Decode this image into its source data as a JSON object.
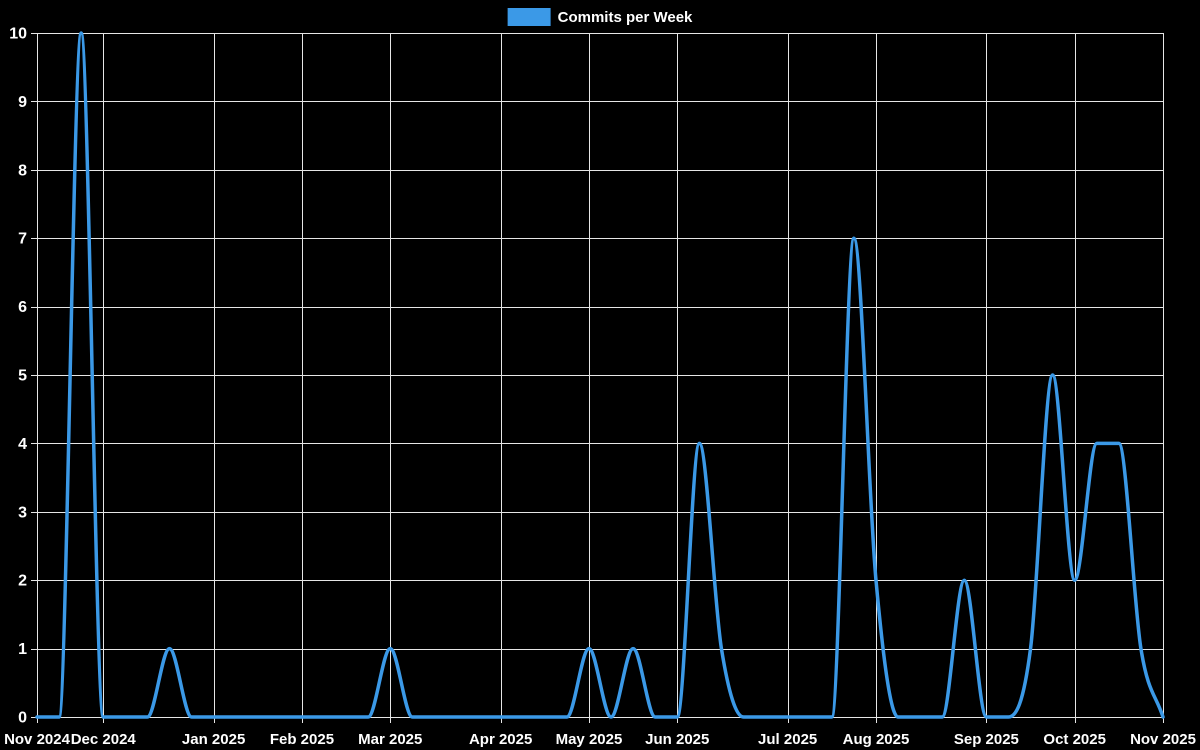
{
  "chart_data": {
    "type": "line",
    "title": "",
    "legend_position": "top-center",
    "interpolation": "monotone",
    "grid": true,
    "point_markers": false,
    "ylim": [
      0,
      10
    ],
    "y_tick_interval": 1,
    "y_tick_labels": [
      "0",
      "1",
      "2",
      "3",
      "4",
      "5",
      "6",
      "7",
      "8",
      "9",
      "10"
    ],
    "x_ticks": [
      {
        "label": "Nov 2024",
        "week": 0
      },
      {
        "label": "Dec 2024",
        "week": 3
      },
      {
        "label": "Jan 2025",
        "week": 8
      },
      {
        "label": "Feb 2025",
        "week": 12
      },
      {
        "label": "Mar 2025",
        "week": 16
      },
      {
        "label": "Apr 2025",
        "week": 21
      },
      {
        "label": "May 2025",
        "week": 25
      },
      {
        "label": "Jun 2025",
        "week": 29
      },
      {
        "label": "Jul 2025",
        "week": 34
      },
      {
        "label": "Aug 2025",
        "week": 38
      },
      {
        "label": "Sep 2025",
        "week": 43
      },
      {
        "label": "Oct 2025",
        "week": 47
      },
      {
        "label": "Nov 2025",
        "week": 51
      }
    ],
    "series": [
      {
        "name": "Commits per Week",
        "color": "#3B99E7",
        "values": [
          0,
          0,
          10,
          0,
          0,
          0,
          1,
          0,
          0,
          0,
          0,
          0,
          0,
          0,
          0,
          0,
          1,
          0,
          0,
          0,
          0,
          0,
          0,
          0,
          0,
          1,
          0,
          1,
          0,
          0,
          4,
          1,
          0,
          0,
          0,
          0,
          0,
          7,
          2,
          0,
          0,
          0,
          2,
          0,
          0,
          1,
          5,
          2,
          4,
          4,
          1,
          0
        ]
      }
    ],
    "colors": {
      "background": "#000000",
      "grid": "#E6E6E6",
      "axis": "#E6E6E6",
      "text": "#FFFFFF",
      "line": "#3B99E7"
    }
  }
}
